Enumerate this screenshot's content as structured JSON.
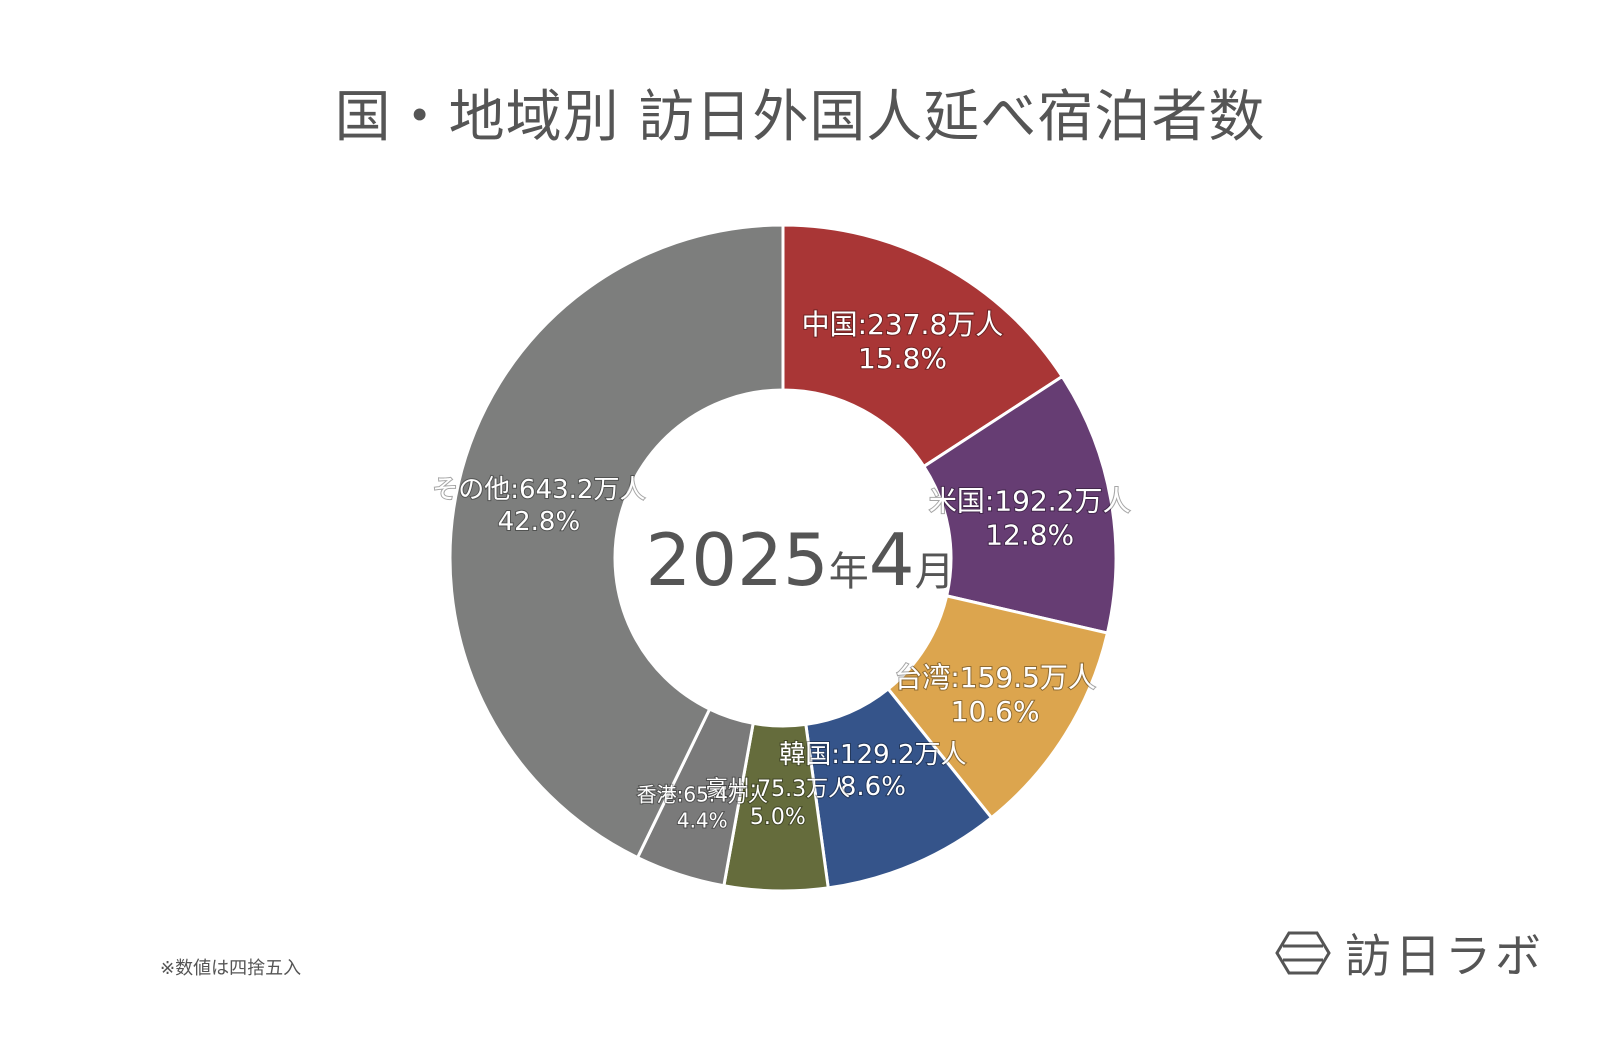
{
  "title": "国・地域別 訪日外国人延べ宿泊者数",
  "footnote": "※数値は四捨五入",
  "brand": "訪日ラボ",
  "chart_data": {
    "type": "pie",
    "center_label": {
      "number": "2025",
      "year_unit": "年",
      "month": "4",
      "month_unit": "月"
    },
    "unit": "万人",
    "slices": [
      {
        "name": "中国",
        "value": 237.8,
        "percent": "15.8%",
        "color": "#A93636",
        "label": "中国:237.8万人"
      },
      {
        "name": "米国",
        "value": 192.2,
        "percent": "12.8%",
        "color": "#663D73",
        "label": "米国:192.2万人"
      },
      {
        "name": "台湾",
        "value": 159.5,
        "percent": "10.6%",
        "color": "#DCA54E",
        "label": "台湾:159.5万人"
      },
      {
        "name": "韓国",
        "value": 129.2,
        "percent": "8.6%",
        "color": "#35548A",
        "label": "韓国:129.2万人"
      },
      {
        "name": "豪州",
        "value": 75.3,
        "percent": "5.0%",
        "color": "#656C3C",
        "label": "豪州:75.3万人"
      },
      {
        "name": "香港",
        "value": 65.4,
        "percent": "4.4%",
        "color": "#7A7A7A",
        "label": "香港:65.4万人"
      },
      {
        "name": "その他",
        "value": 643.2,
        "percent": "42.8%",
        "color": "#7D7E7D",
        "label": "その他:643.2万人"
      }
    ]
  }
}
